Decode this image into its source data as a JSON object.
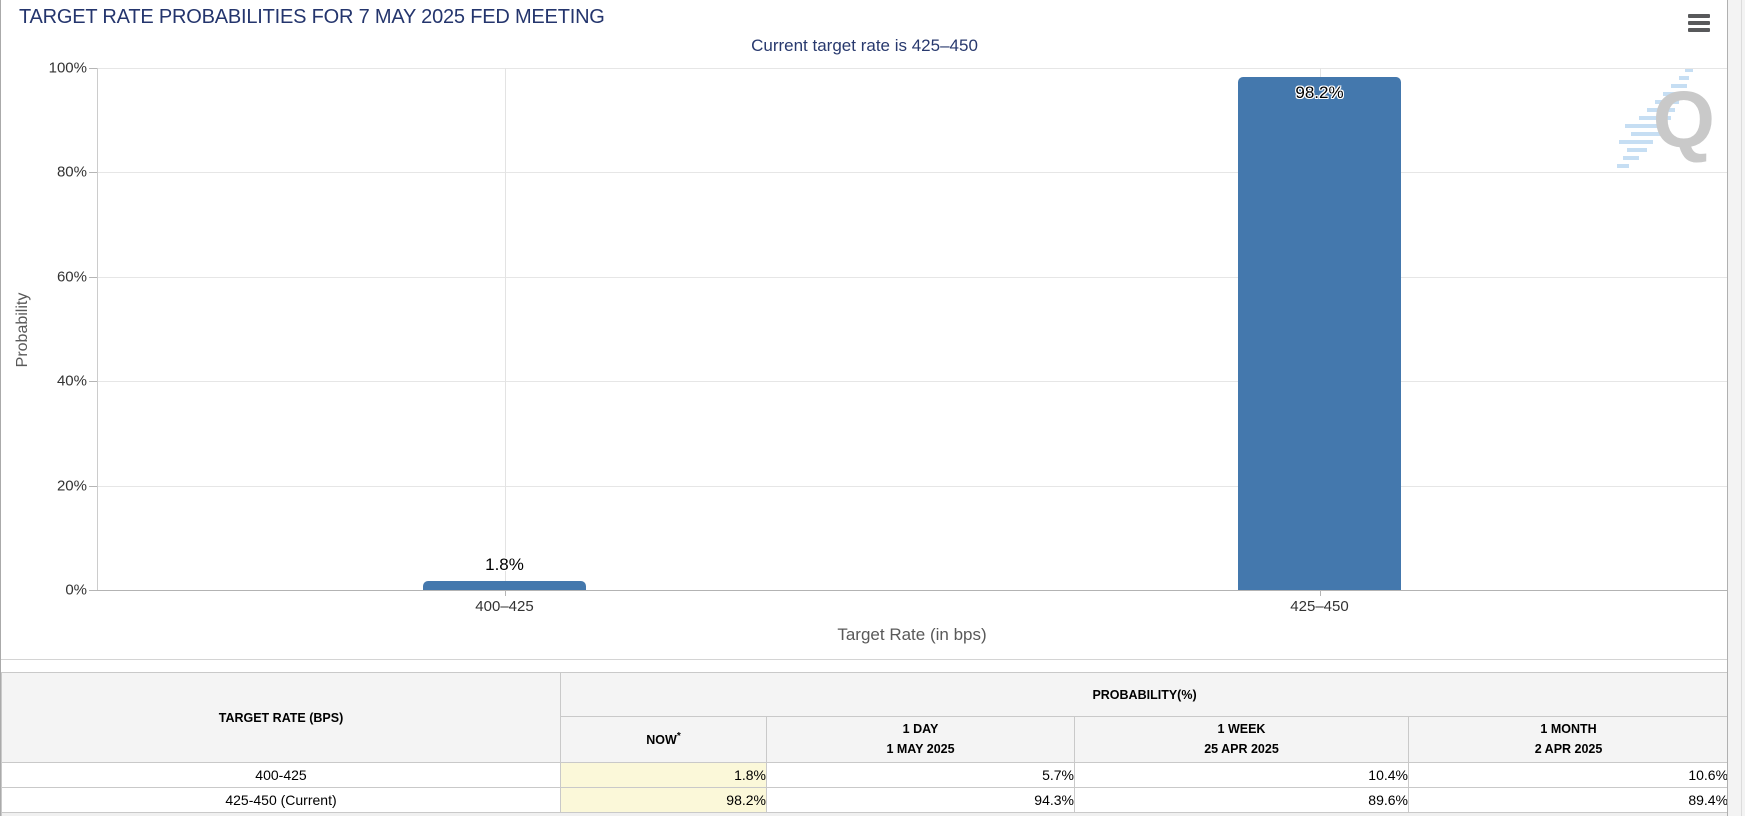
{
  "header": {
    "title": "TARGET RATE PROBABILITIES FOR 7 MAY 2025 FED MEETING"
  },
  "chart": {
    "subtitle": "Current target rate is 425–450",
    "ylabel": "Probability",
    "xlabel": "Target Rate (in bps)",
    "yticks_top_down": [
      "100%",
      "80%",
      "60%",
      "40%",
      "20%",
      "0%"
    ],
    "watermark_letter": "Q"
  },
  "chart_data": {
    "type": "bar",
    "categories": [
      "400–425",
      "425–450"
    ],
    "values": [
      1.8,
      98.2
    ],
    "value_labels": [
      "1.8%",
      "98.2%"
    ],
    "title": "Current target rate is 425–450",
    "xlabel": "Target Rate (in bps)",
    "ylabel": "Probability",
    "ylim": [
      0,
      100
    ],
    "ytick_step": 20,
    "grid": true,
    "legend": false,
    "bar_color": "#4478ad"
  },
  "colors": {
    "bar": "#4478ad",
    "title_navy": "#24356d",
    "now_highlight": "#fbf8d9"
  },
  "table": {
    "col1_header": "TARGET RATE (BPS)",
    "group_header": "PROBABILITY(%)",
    "columns": [
      {
        "label": "NOW",
        "sup": "*",
        "date": ""
      },
      {
        "label": "1 DAY",
        "date": "1 MAY 2025"
      },
      {
        "label": "1 WEEK",
        "date": "25 APR 2025"
      },
      {
        "label": "1 MONTH",
        "date": "2 APR 2025"
      }
    ],
    "rows": [
      {
        "rate": "400-425",
        "now": "1.8%",
        "day": "5.7%",
        "week": "10.4%",
        "month": "10.6%"
      },
      {
        "rate": "425-450 (Current)",
        "now": "98.2%",
        "day": "94.3%",
        "week": "89.6%",
        "month": "89.4%"
      }
    ]
  }
}
